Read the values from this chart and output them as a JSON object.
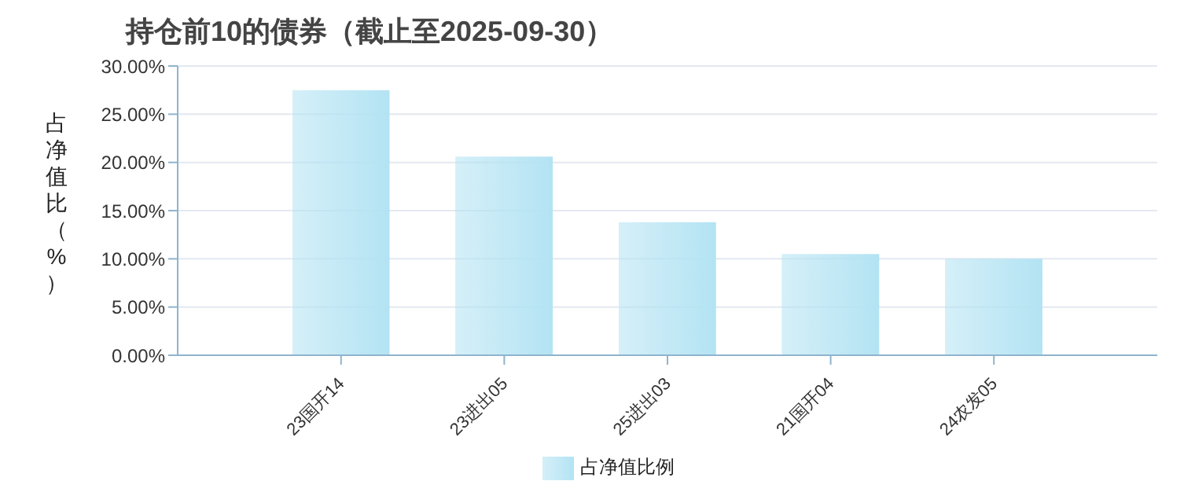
{
  "chart_data": {
    "type": "bar",
    "title": "持仓前10的债券（截止至2025-09-30）",
    "ylabel": "占净值比（%）",
    "categories": [
      "23国开14",
      "23进出05",
      "25进出03",
      "21国开04",
      "24农发05"
    ],
    "series": [
      {
        "name": "占净值比例",
        "color": "#b3e3f3",
        "values": [
          27.5,
          20.6,
          13.8,
          10.5,
          10
        ]
      }
    ],
    "ylim": [
      0,
      30
    ],
    "yticks": [
      {
        "value": 0,
        "label": "0.00%"
      },
      {
        "value": 5,
        "label": "5.00%"
      },
      {
        "value": 10,
        "label": "10.00%"
      },
      {
        "value": 15,
        "label": "15.00%"
      },
      {
        "value": 20,
        "label": "20.00%"
      },
      {
        "value": 25,
        "label": "25.00%"
      },
      {
        "value": 30,
        "label": "30.00%"
      }
    ],
    "grid": "y",
    "legend": "bottom"
  }
}
